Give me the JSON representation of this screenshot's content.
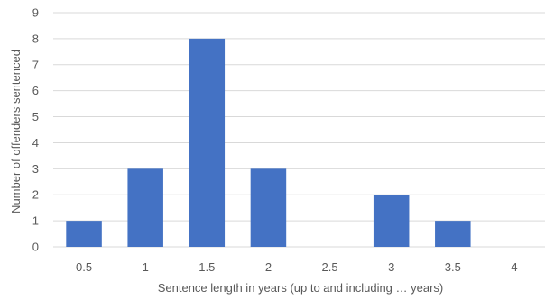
{
  "chart_data": {
    "type": "bar",
    "categories": [
      "0.5",
      "1",
      "1.5",
      "2",
      "2.5",
      "3",
      "3.5",
      "4"
    ],
    "values": [
      1,
      3,
      8,
      3,
      0,
      2,
      1,
      0
    ],
    "title": "",
    "xlabel": "Sentence length in years (up to and including … years)",
    "ylabel": "Number of offenders sentenced",
    "ylim": [
      0,
      9
    ],
    "yticks": [
      "0",
      "1",
      "2",
      "3",
      "4",
      "5",
      "6",
      "7",
      "8",
      "9"
    ],
    "grid": true,
    "legend": "none",
    "colors": {
      "bar": "#4472C4",
      "grid": "#D9D9D9",
      "text": "#595959"
    }
  }
}
